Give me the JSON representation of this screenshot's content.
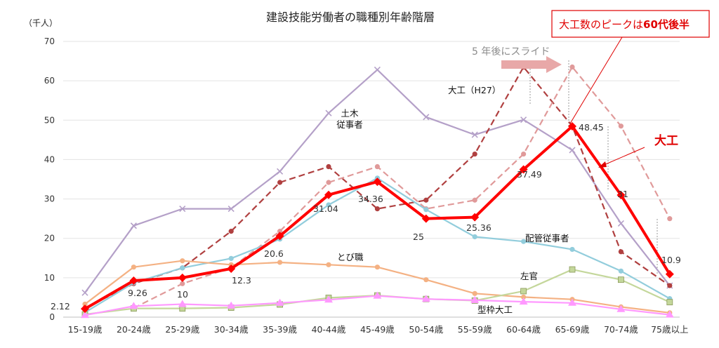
{
  "chart_data": {
    "type": "line",
    "title": "建設技能労働者の職種別年齢階層",
    "ylabel": "（千人）",
    "ylim": [
      0,
      70
    ],
    "yticks": [
      "0",
      "10",
      "20",
      "30",
      "40",
      "50",
      "60",
      "70"
    ],
    "grid": true,
    "categories": [
      "15-19歳",
      "20-24歳",
      "25-29歳",
      "30-34歳",
      "35-39歳",
      "40-44歳",
      "45-49歳",
      "50-54歳",
      "55-59歳",
      "60-64歳",
      "65-69歳",
      "70-74歳",
      "75歳以上"
    ],
    "series": [
      {
        "name": "土木\n従事者",
        "color": "#b4a0c8",
        "dash": "solid",
        "marker": "x",
        "values": [
          6.2,
          23.2,
          27.5,
          27.5,
          37.0,
          51.8,
          62.8,
          50.8,
          46.3,
          50.1,
          42.4,
          23.8,
          8.0
        ]
      },
      {
        "name": "大工(H27)",
        "color": "#b04040",
        "dash": "dashed",
        "marker": "circle",
        "values": [
          2.3,
          8.5,
          12.5,
          21.8,
          34.2,
          38.2,
          27.5,
          29.7,
          41.4,
          63.5,
          48.5,
          16.6,
          8.0
        ]
      },
      {
        "name": "",
        "color": "#e09a9a",
        "dash": "dashed",
        "marker": "circle",
        "values": [
          null,
          2.3,
          8.5,
          12.5,
          21.8,
          34.2,
          38.2,
          27.5,
          29.7,
          41.4,
          63.5,
          48.5,
          25.0
        ]
      },
      {
        "name": "配管従事者",
        "color": "#92cddc",
        "dash": "solid",
        "marker": "circle",
        "values": [
          1.2,
          8.7,
          12.5,
          14.9,
          19.8,
          28.5,
          35.3,
          27.3,
          20.4,
          19.2,
          17.2,
          11.7,
          4.7
        ]
      },
      {
        "name": "とび職",
        "color": "#f4b183",
        "dash": "solid",
        "marker": "circle",
        "values": [
          3.3,
          12.7,
          14.3,
          13.3,
          13.9,
          13.3,
          12.7,
          9.5,
          6.0,
          5.1,
          4.5,
          2.6,
          1.1
        ]
      },
      {
        "name": "左官",
        "color": "#c4d79b",
        "dash": "solid",
        "marker": "square",
        "values": [
          0.7,
          2.2,
          2.2,
          2.4,
          3.2,
          4.9,
          5.5,
          4.6,
          4.2,
          6.6,
          12.1,
          9.5,
          3.8
        ]
      },
      {
        "name": "型枠大工",
        "color": "#ff99ff",
        "dash": "solid",
        "marker": "triangle",
        "values": [
          0.5,
          2.8,
          3.3,
          2.9,
          3.6,
          4.4,
          5.4,
          4.6,
          4.3,
          3.9,
          3.6,
          2.0,
          0.6
        ]
      },
      {
        "name": "大工",
        "color": "#ff0000",
        "dash": "solid",
        "marker": "diamond",
        "width": 4,
        "values": [
          2.12,
          9.26,
          10,
          12.3,
          20.6,
          31.04,
          34.36,
          25,
          25.36,
          37.49,
          48.45,
          31,
          10.9
        ]
      }
    ],
    "data_labels": [
      "2.12",
      "9.26",
      "10",
      "12.3",
      "20.6",
      "31.04",
      "34.36",
      "25",
      "25.36",
      "37.49",
      "48.45",
      "31",
      "10.9"
    ]
  },
  "annotations": {
    "shift_text": "5 年後にスライド",
    "peak_text_part1": "大工数のピークは",
    "peak_text_part2": "60代後半",
    "daiku_label": "大工",
    "label_doboku_1": "土木",
    "label_doboku_2": "従事者",
    "label_daiku_h27": "大工（H27）",
    "label_haikan": "配管従事者",
    "label_tobi": "とび職",
    "label_sakan": "左官",
    "label_katawaku": "型枠大工"
  }
}
